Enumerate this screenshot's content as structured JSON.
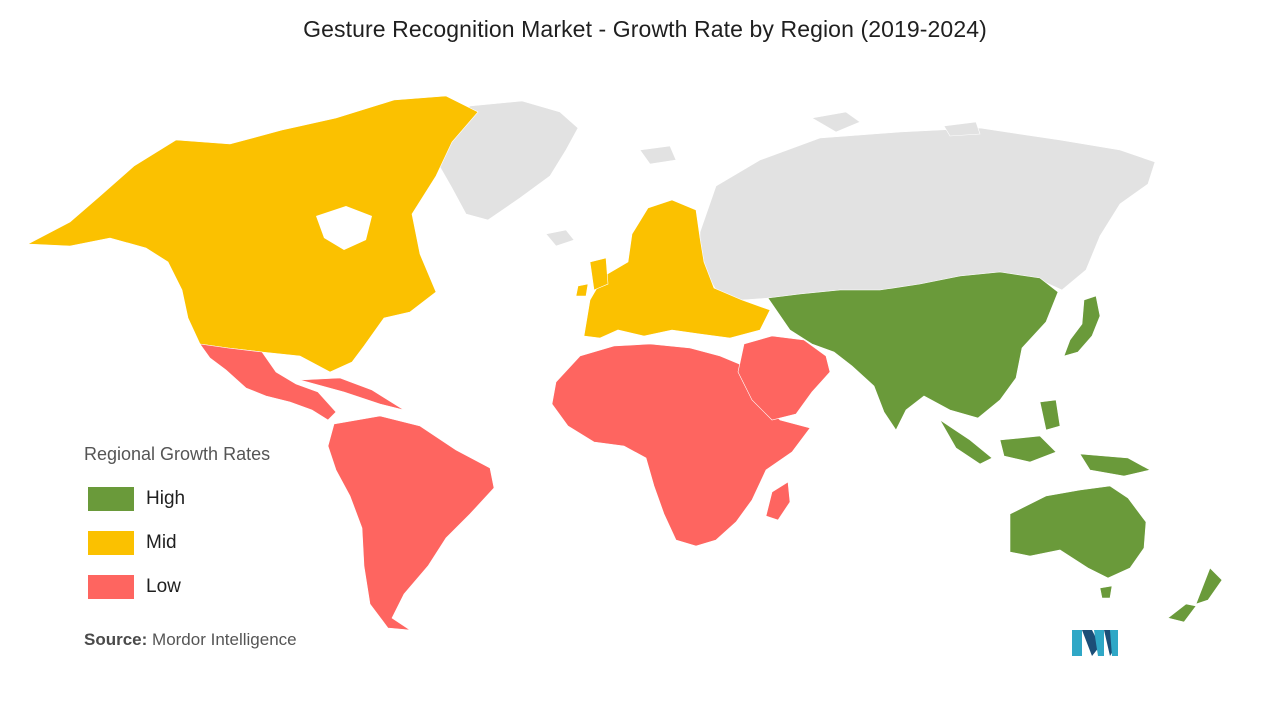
{
  "title": "Gesture Recognition Market - Growth Rate by Region (2019-2024)",
  "colors": {
    "high": "#6a9a3a",
    "mid": "#fbc100",
    "low": "#fe6560",
    "no_data": "#e2e2e2",
    "logo_teal": "#2fa7c6",
    "logo_dark": "#1c4e77"
  },
  "legend": {
    "title": "Regional Growth Rates",
    "items": [
      {
        "key": "high",
        "label": "High",
        "color": "#6a9a3a"
      },
      {
        "key": "mid",
        "label": "Mid",
        "color": "#fbc100"
      },
      {
        "key": "low",
        "label": "Low",
        "color": "#fe6560"
      }
    ]
  },
  "regions": {
    "north_america": "mid",
    "europe": "mid",
    "asia_pacific": "high",
    "latin_america": "low",
    "middle_east_africa": "low",
    "greenland": "no_data",
    "russia": "no_data"
  },
  "source": {
    "label": "Source:",
    "text": "Mordor Intelligence"
  },
  "logo": {
    "icon": "mordor-intelligence-logo-icon"
  }
}
